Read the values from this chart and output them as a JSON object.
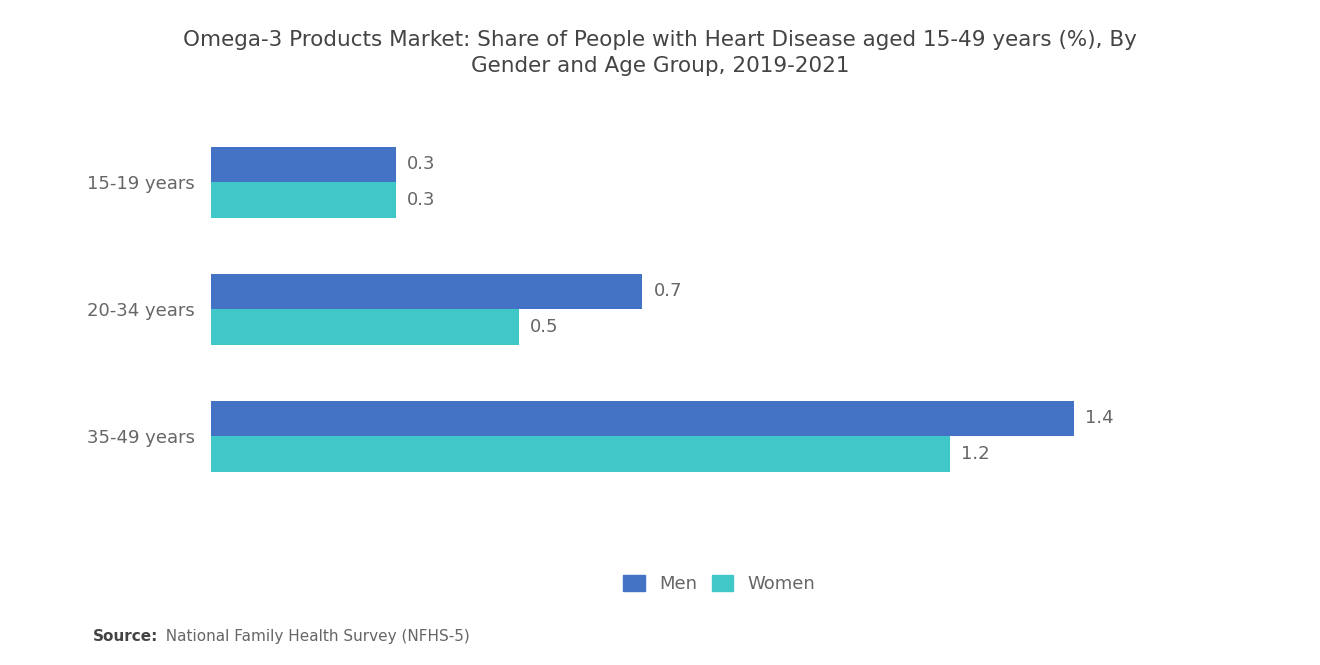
{
  "title_line1": "Omega-3 Products Market: Share of People with Heart Disease aged 15-49 years (%), By",
  "title_line2": "Gender and Age Group, 2019-2021",
  "categories": [
    "15-19 years",
    "20-34 years",
    "35-49 years"
  ],
  "men_values": [
    0.3,
    0.7,
    1.4
  ],
  "women_values": [
    0.3,
    0.5,
    1.2
  ],
  "men_color": "#4472C4",
  "women_color": "#40C8C8",
  "background_color": "#FFFFFF",
  "title_fontsize": 15.5,
  "label_fontsize": 13,
  "tick_fontsize": 13,
  "legend_fontsize": 13,
  "bar_height": 0.28,
  "xlim": [
    0,
    1.65
  ],
  "source_bold": "Source:",
  "source_rest": "  National Family Health Survey (NFHS-5)",
  "legend_labels": [
    "Men",
    "Women"
  ]
}
